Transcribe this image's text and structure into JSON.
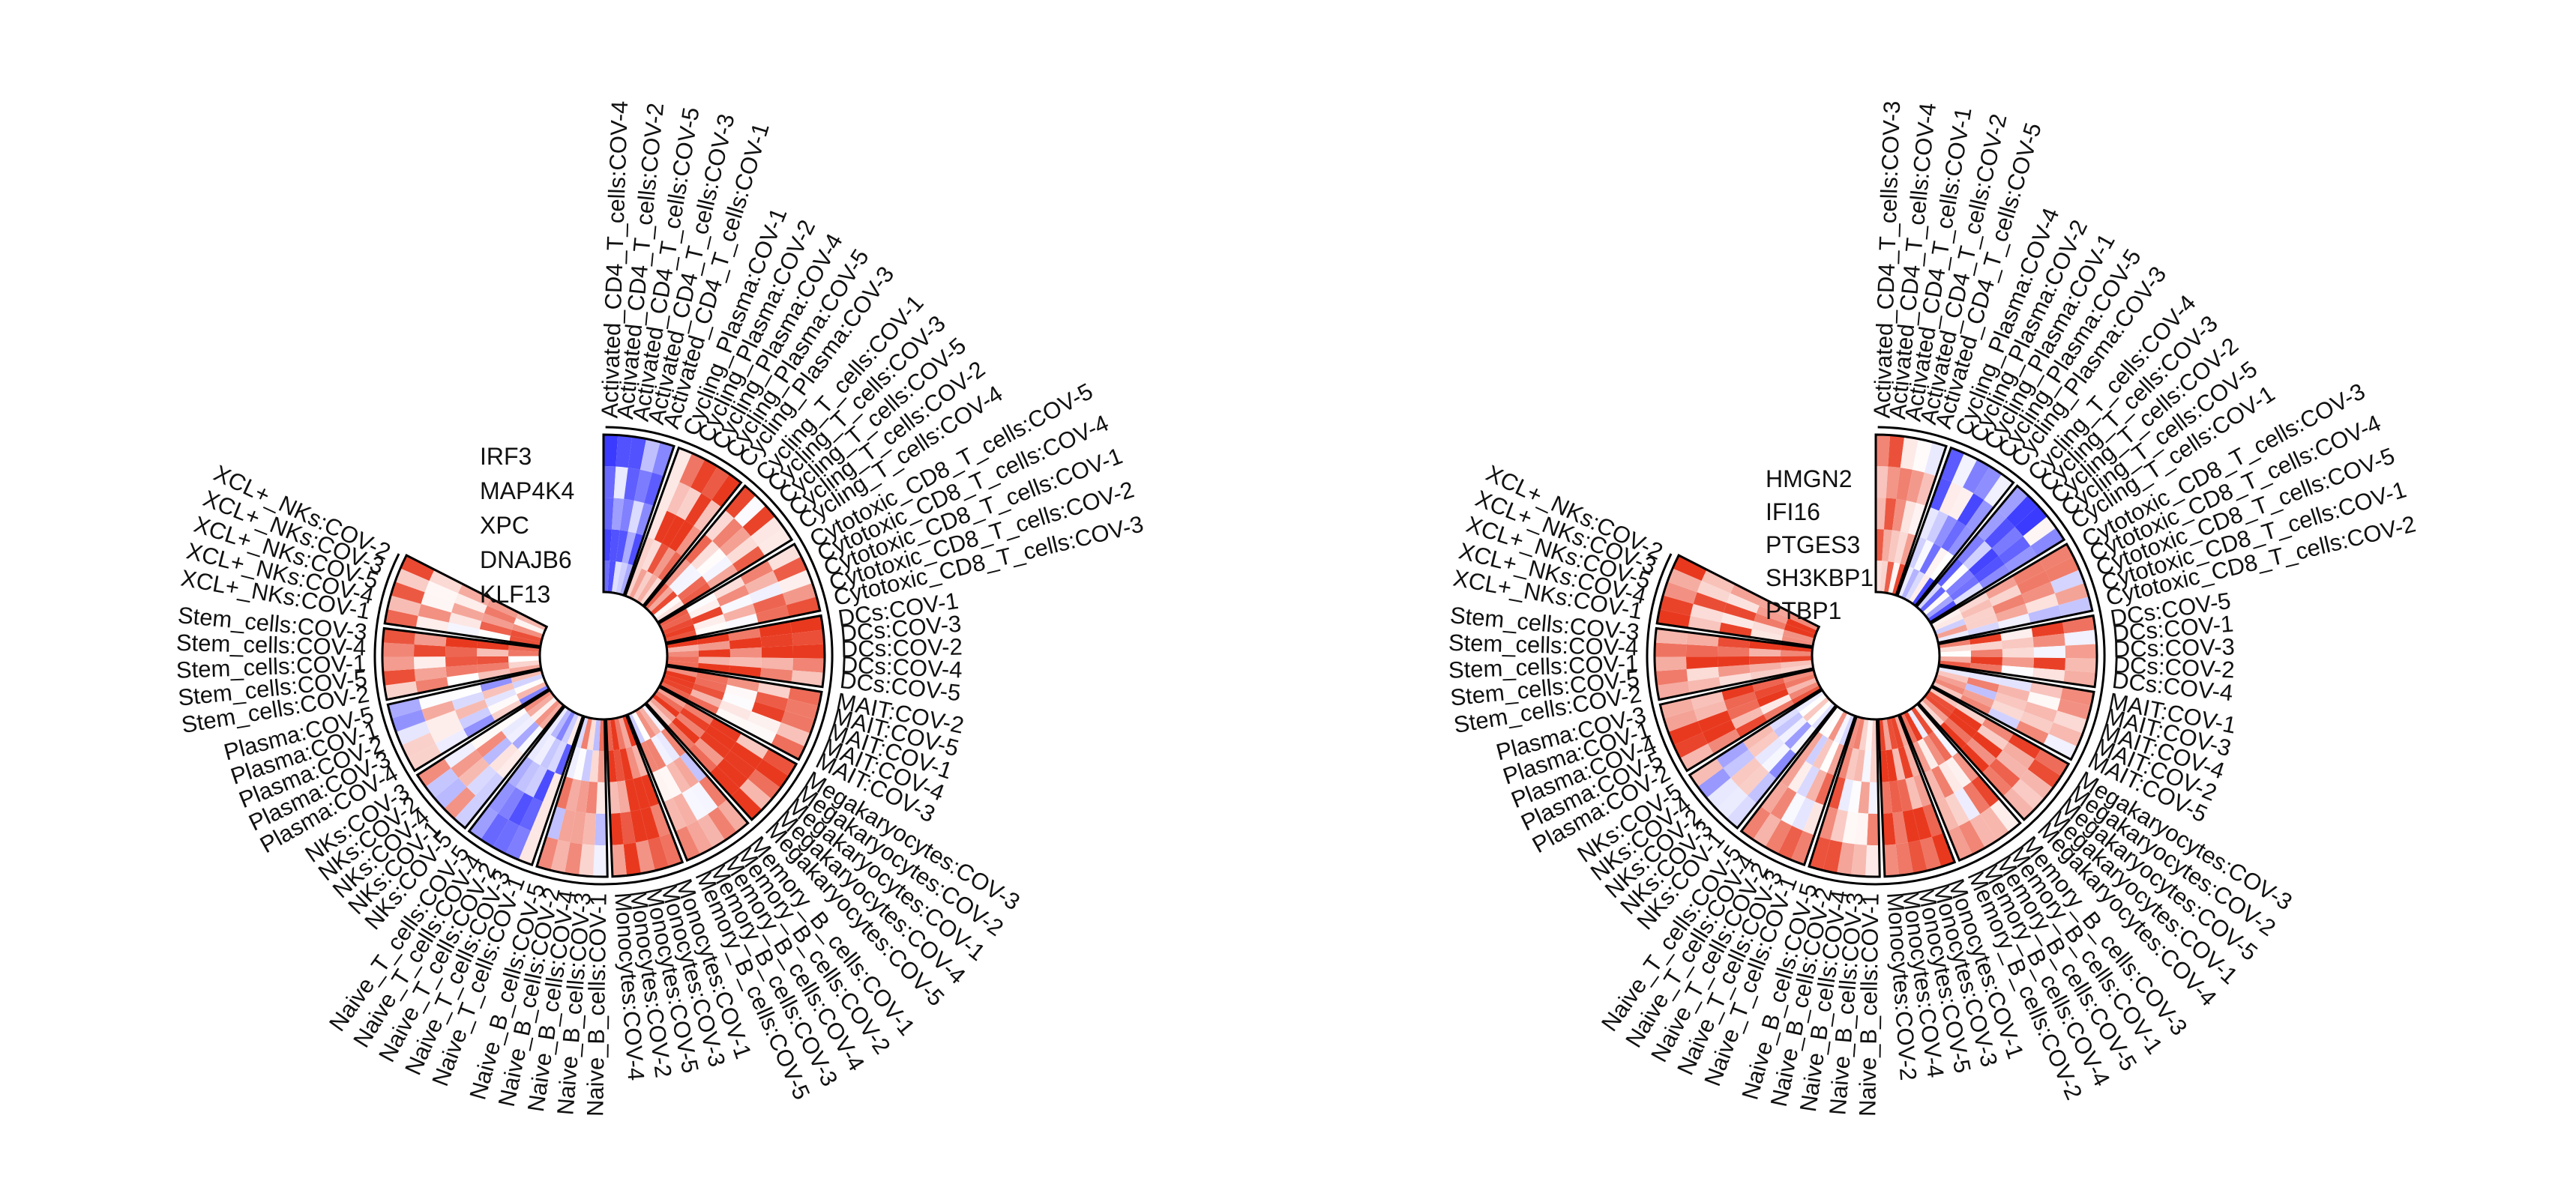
{
  "figure": {
    "background": "#ffffff"
  },
  "chart_data": [
    {
      "type": "heatmap",
      "layout": "circular",
      "start_angle_deg": 0,
      "end_angle_deg": 297,
      "genes": [
        "IRF3",
        "MAP4K4",
        "XPC",
        "DNAJB6",
        "KLF13"
      ],
      "color_scale": {
        "low": "#3b3bff",
        "mid": "#ffffff",
        "high": "#e8391f",
        "range": [
          -2,
          2
        ]
      },
      "groups": [
        {
          "name": "Activated_CD4_T_cells",
          "samples": [
            "Activated_CD4_T_cells:COV-4",
            "Activated_CD4_T_cells:COV-2",
            "Activated_CD4_T_cells:COV-5",
            "Activated_CD4_T_cells:COV-3",
            "Activated_CD4_T_cells:COV-1"
          ]
        },
        {
          "name": "Cycling_Plasma",
          "samples": [
            "Cycling_Plasma:COV-1",
            "Cycling_Plasma:COV-2",
            "Cycling_Plasma:COV-4",
            "Cycling_Plasma:COV-5",
            "Cycling_Plasma:COV-3"
          ]
        },
        {
          "name": "Cycling_T_cells",
          "samples": [
            "Cycling_T_cells:COV-1",
            "Cycling_T_cells:COV-3",
            "Cycling_T_cells:COV-5",
            "Cycling_T_cells:COV-2",
            "Cycling_T_cells:COV-4"
          ]
        },
        {
          "name": "Cytotoxic_CD8_T_cells",
          "samples": [
            "Cytotoxic_CD8_T_cells:COV-5",
            "Cytotoxic_CD8_T_cells:COV-4",
            "Cytotoxic_CD8_T_cells:COV-1",
            "Cytotoxic_CD8_T_cells:COV-2",
            "Cytotoxic_CD8_T_cells:COV-3"
          ]
        },
        {
          "name": "DCs",
          "samples": [
            "DCs:COV-1",
            "DCs:COV-3",
            "DCs:COV-2",
            "DCs:COV-4",
            "DCs:COV-5"
          ]
        },
        {
          "name": "MAIT",
          "samples": [
            "MAIT:COV-2",
            "MAIT:COV-5",
            "MAIT:COV-1",
            "MAIT:COV-4",
            "MAIT:COV-3"
          ]
        },
        {
          "name": "Megakaryocytes",
          "samples": [
            "Megakaryocytes:COV-3",
            "Megakaryocytes:COV-2",
            "Megakaryocytes:COV-1",
            "Megakaryocytes:COV-4",
            "Megakaryocytes:COV-5"
          ]
        },
        {
          "name": "Memory_B_cells",
          "samples": [
            "Memory_B_cells:COV-1",
            "Memory_B_cells:COV-2",
            "Memory_B_cells:COV-4",
            "Memory_B_cells:COV-3",
            "Memory_B_cells:COV-5"
          ]
        },
        {
          "name": "Monocytes",
          "samples": [
            "Monocytes:COV-1",
            "Monocytes:COV-3",
            "Monocytes:COV-5",
            "Monocytes:COV-2",
            "Monocytes:COV-4"
          ]
        },
        {
          "name": "Naive_B_cells",
          "samples": [
            "Naive_B_cells:COV-1",
            "Naive_B_cells:COV-3",
            "Naive_B_cells:COV-4",
            "Naive_B_cells:COV-2",
            "Naive_B_cells:COV-5"
          ]
        },
        {
          "name": "Naive_T_cells",
          "samples": [
            "Naive_T_cells:COV-1",
            "Naive_T_cells:COV-3",
            "Naive_T_cells:COV-2",
            "Naive_T_cells:COV-4",
            "Naive_T_cells:COV-5"
          ]
        },
        {
          "name": "NKs",
          "samples": [
            "NKs:COV-5",
            "NKs:COV-1",
            "NKs:COV-4",
            "NKs:COV-2",
            "NKs:COV-3"
          ]
        },
        {
          "name": "Plasma",
          "samples": [
            "Plasma:COV-4",
            "Plasma:COV-3",
            "Plasma:COV-2",
            "Plasma:COV-1",
            "Plasma:COV-5"
          ]
        },
        {
          "name": "Stem_cells",
          "samples": [
            "Stem_cells:COV-2",
            "Stem_cells:COV-5",
            "Stem_cells:COV-1",
            "Stem_cells:COV-4",
            "Stem_cells:COV-3"
          ]
        },
        {
          "name": "XCL+_NKs",
          "samples": [
            "XCL+_NKs:COV-1",
            "XCL+_NKs:COV-4",
            "XCL+_NKs:COV-5",
            "XCL+_NKs:COV-3",
            "XCL+_NKs:COV-2"
          ]
        }
      ],
      "group_levels": [
        -1.0,
        1.3,
        0.9,
        0.9,
        1.5,
        1.0,
        1.6,
        0.4,
        1.7,
        0.4,
        -0.8,
        0.1,
        -0.2,
        1.0,
        0.8
      ]
    },
    {
      "type": "heatmap",
      "layout": "circular",
      "start_angle_deg": 0,
      "end_angle_deg": 297,
      "genes": [
        "HMGN2",
        "IFI16",
        "PTGES3",
        "SH3KBP1",
        "PTBP1"
      ],
      "color_scale": {
        "low": "#3b3bff",
        "mid": "#ffffff",
        "high": "#e8391f",
        "range": [
          -2,
          2
        ]
      },
      "groups": [
        {
          "name": "Activated_CD4_T_cells",
          "samples": [
            "Activated_CD4_T_cells:COV-3",
            "Activated_CD4_T_cells:COV-4",
            "Activated_CD4_T_cells:COV-1",
            "Activated_CD4_T_cells:COV-2",
            "Activated_CD4_T_cells:COV-5"
          ]
        },
        {
          "name": "Cycling_Plasma",
          "samples": [
            "Cycling_Plasma:COV-4",
            "Cycling_Plasma:COV-2",
            "Cycling_Plasma:COV-1",
            "Cycling_Plasma:COV-5",
            "Cycling_Plasma:COV-3"
          ]
        },
        {
          "name": "Cycling_T_cells",
          "samples": [
            "Cycling_T_cells:COV-4",
            "Cycling_T_cells:COV-3",
            "Cycling_T_cells:COV-2",
            "Cycling_T_cells:COV-5",
            "Cycling_T_cells:COV-1"
          ]
        },
        {
          "name": "Cytotoxic_CD8_T_cells",
          "samples": [
            "Cytotoxic_CD8_T_cells:COV-3",
            "Cytotoxic_CD8_T_cells:COV-4",
            "Cytotoxic_CD8_T_cells:COV-5",
            "Cytotoxic_CD8_T_cells:COV-1",
            "Cytotoxic_CD8_T_cells:COV-2"
          ]
        },
        {
          "name": "DCs",
          "samples": [
            "DCs:COV-5",
            "DCs:COV-1",
            "DCs:COV-3",
            "DCs:COV-2",
            "DCs:COV-4"
          ]
        },
        {
          "name": "MAIT",
          "samples": [
            "MAIT:COV-1",
            "MAIT:COV-3",
            "MAIT:COV-4",
            "MAIT:COV-2",
            "MAIT:COV-5"
          ]
        },
        {
          "name": "Megakaryocytes",
          "samples": [
            "Megakaryocytes:COV-3",
            "Megakaryocytes:COV-2",
            "Megakaryocytes:COV-5",
            "Megakaryocytes:COV-1",
            "Megakaryocytes:COV-4"
          ]
        },
        {
          "name": "Memory_B_cells",
          "samples": [
            "Memory_B_cells:COV-3",
            "Memory_B_cells:COV-1",
            "Memory_B_cells:COV-5",
            "Memory_B_cells:COV-4",
            "Memory_B_cells:COV-2"
          ]
        },
        {
          "name": "Monocytes",
          "samples": [
            "Monocytes:COV-1",
            "Monocytes:COV-3",
            "Monocytes:COV-5",
            "Monocytes:COV-4",
            "Monocytes:COV-2"
          ]
        },
        {
          "name": "Naive_B_cells",
          "samples": [
            "Naive_B_cells:COV-1",
            "Naive_B_cells:COV-3",
            "Naive_B_cells:COV-4",
            "Naive_B_cells:COV-2",
            "Naive_B_cells:COV-5"
          ]
        },
        {
          "name": "Naive_T_cells",
          "samples": [
            "Naive_T_cells:COV-1",
            "Naive_T_cells:COV-3",
            "Naive_T_cells:COV-2",
            "Naive_T_cells:COV-4",
            "Naive_T_cells:COV-5"
          ]
        },
        {
          "name": "NKs",
          "samples": [
            "NKs:COV-1",
            "NKs:COV-3",
            "NKs:COV-2",
            "NKs:COV-4",
            "NKs:COV-5"
          ]
        },
        {
          "name": "Plasma",
          "samples": [
            "Plasma:COV-2",
            "Plasma:COV-5",
            "Plasma:COV-4",
            "Plasma:COV-1",
            "Plasma:COV-3"
          ]
        },
        {
          "name": "Stem_cells",
          "samples": [
            "Stem_cells:COV-2",
            "Stem_cells:COV-5",
            "Stem_cells:COV-1",
            "Stem_cells:COV-4",
            "Stem_cells:COV-3"
          ]
        },
        {
          "name": "XCL+_NKs",
          "samples": [
            "XCL+_NKs:COV-1",
            "XCL+_NKs:COV-4",
            "XCL+_NKs:COV-5",
            "XCL+_NKs:COV-3",
            "XCL+_NKs:COV-2"
          ]
        }
      ],
      "group_levels": [
        0.8,
        -0.9,
        -1.0,
        0.4,
        0.9,
        0.4,
        1.3,
        0.9,
        1.6,
        0.9,
        0.6,
        -0.3,
        1.3,
        1.4,
        1.2
      ]
    }
  ]
}
